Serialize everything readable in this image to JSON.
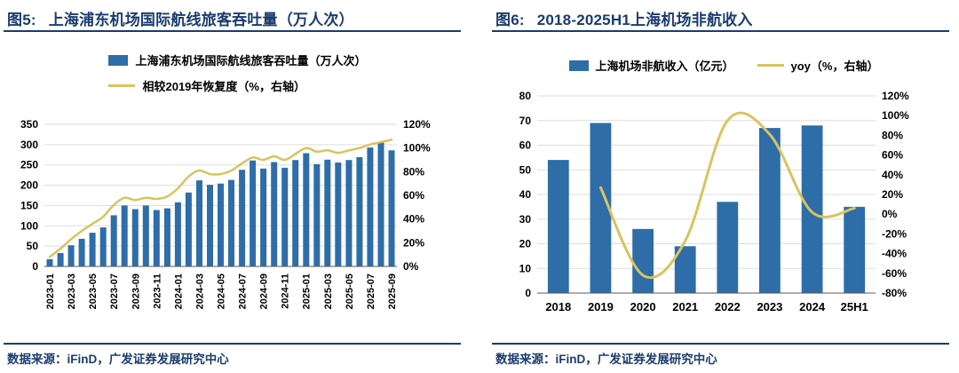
{
  "page": {
    "background": "#ffffff"
  },
  "colors": {
    "title": "#1A3C6E",
    "bar": "#2E6DA8",
    "line": "#D9C35F",
    "grid": "#DDDDDD",
    "axis_line": "#595959",
    "tick_text": "#000000"
  },
  "panels": {
    "left": {
      "fig_label": "图5:",
      "title": "上海浦东机场国际航线旅客吞吐量（万人次）",
      "source": "数据来源：iFinD，广发证券发展研究中心"
    },
    "right": {
      "fig_label": "图6:",
      "title": "2018-2025H1上海机场非航收入",
      "source": "数据来源：iFinD，广发证券发展研究中心"
    }
  },
  "chart_data": [
    {
      "type": "bar",
      "combo": "bar+line",
      "title": "上海浦东机场国际航线旅客吞吐量（万人次）",
      "categories": [
        "2023-01",
        "2023-02",
        "2023-03",
        "2023-04",
        "2023-05",
        "2023-06",
        "2023-07",
        "2023-08",
        "2023-09",
        "2023-10",
        "2023-11",
        "2023-12",
        "2024-01",
        "2024-02",
        "2024-03",
        "2024-04",
        "2024-05",
        "2024-06",
        "2024-07",
        "2024-08",
        "2024-09",
        "2024-10",
        "2024-11",
        "2024-12",
        "2025-01",
        "2025-02",
        "2025-03",
        "2025-04",
        "2025-05",
        "2025-06",
        "2025-07",
        "2025-08",
        "2025-09"
      ],
      "series": [
        {
          "name": "上海浦东机场国际航线旅客吞吐量（万人次）",
          "type": "bar",
          "axis": "left",
          "values": [
            18,
            33,
            52,
            68,
            83,
            96,
            126,
            150,
            141,
            150,
            139,
            143,
            158,
            182,
            212,
            201,
            204,
            213,
            238,
            261,
            241,
            257,
            243,
            262,
            279,
            252,
            263,
            256,
            262,
            269,
            293,
            305,
            286
          ]
        },
        {
          "name": "相较2019年恢复度（%，右轴）",
          "type": "line",
          "axis": "right",
          "values": [
            8,
            15,
            23,
            30,
            36,
            42,
            52,
            58,
            56,
            58,
            57,
            59,
            66,
            76,
            81,
            78,
            78,
            81,
            87,
            92,
            90,
            93,
            90,
            95,
            100,
            97,
            98,
            96,
            98,
            100,
            103,
            105,
            107
          ]
        }
      ],
      "left_axis": {
        "min": 0,
        "max": 350,
        "step": 50,
        "suffix": ""
      },
      "right_axis": {
        "min": 0,
        "max": 120,
        "step": 20,
        "suffix": "%"
      },
      "x_tick_every": 2,
      "x_label_rotate": true,
      "smooth": true,
      "grid": true,
      "legend_position": "top"
    },
    {
      "type": "bar",
      "combo": "bar+line",
      "title": "2018-2025H1上海机场非航收入",
      "categories": [
        "2018",
        "2019",
        "2020",
        "2021",
        "2022",
        "2023",
        "2024",
        "25H1"
      ],
      "series": [
        {
          "name": "上海机场非航收入（亿元）",
          "type": "bar",
          "axis": "left",
          "values": [
            54,
            69,
            26,
            19,
            37,
            67,
            68,
            35
          ]
        },
        {
          "name": "yoy（%，右轴）",
          "type": "line",
          "axis": "right",
          "values": [
            null,
            27,
            -62,
            -27,
            95,
            81,
            2,
            6
          ]
        }
      ],
      "left_axis": {
        "min": 0,
        "max": 80,
        "step": 10,
        "suffix": ""
      },
      "right_axis": {
        "min": -80,
        "max": 120,
        "step": 20,
        "suffix": "%"
      },
      "x_tick_every": 1,
      "x_label_rotate": false,
      "smooth": true,
      "grid": true,
      "legend_position": "top"
    }
  ]
}
